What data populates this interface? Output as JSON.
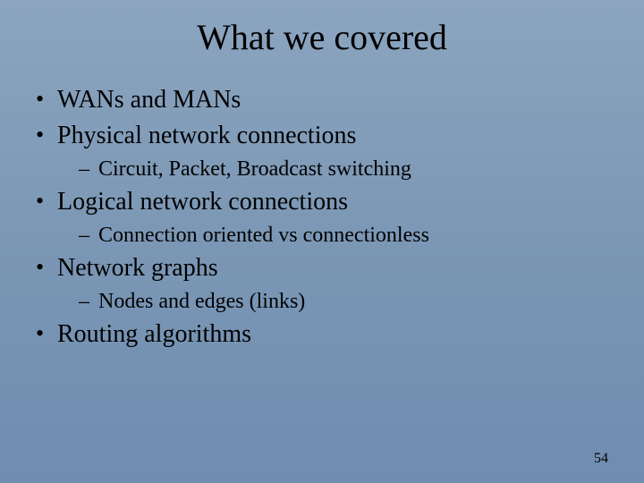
{
  "slide": {
    "title": "What we covered",
    "page_number": "54",
    "background_gradient_top": "#8ca5bf",
    "background_gradient_mid": "#7b97b5",
    "background_gradient_bottom": "#6f8db0",
    "text_color": "#000000",
    "title_fontsize": 40,
    "l1_fontsize": 28,
    "l2_fontsize": 24,
    "font_family": "Times New Roman",
    "items": [
      {
        "level": 1,
        "text": "WANs and MANs"
      },
      {
        "level": 1,
        "text": "Physical network connections"
      },
      {
        "level": 2,
        "text": "Circuit, Packet, Broadcast switching"
      },
      {
        "level": 1,
        "text": "Logical network connections"
      },
      {
        "level": 2,
        "text": "Connection oriented vs connectionless"
      },
      {
        "level": 1,
        "text": "Network graphs"
      },
      {
        "level": 2,
        "text": "Nodes and edges (links)"
      },
      {
        "level": 1,
        "text": "Routing algorithms"
      }
    ]
  }
}
